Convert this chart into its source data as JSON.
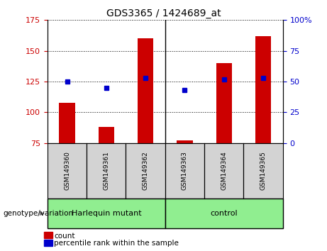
{
  "title": "GDS3365 / 1424689_at",
  "samples": [
    "GSM149360",
    "GSM149361",
    "GSM149362",
    "GSM149363",
    "GSM149364",
    "GSM149365"
  ],
  "count_values": [
    108,
    88,
    160,
    77,
    140,
    162
  ],
  "percentile_values": [
    50,
    45,
    53,
    43,
    52,
    53
  ],
  "ylim_left": [
    75,
    175
  ],
  "ylim_right": [
    0,
    100
  ],
  "yticks_left": [
    75,
    100,
    125,
    150,
    175
  ],
  "yticks_right": [
    0,
    25,
    50,
    75,
    100
  ],
  "bar_color": "#cc0000",
  "dot_color": "#0000cc",
  "bar_bottom": 75,
  "group_separator_after": 2,
  "legend_count_label": "count",
  "legend_percentile_label": "percentile rank within the sample",
  "genotype_label": "genotype/variation",
  "tick_label_color_left": "#cc0000",
  "tick_label_color_right": "#0000cc",
  "harlequin_label": "Harlequin mutant",
  "control_label": "control",
  "group_bg_color": "#90ee90",
  "xtick_bg_color": "#d3d3d3",
  "separator_color": "#000000"
}
